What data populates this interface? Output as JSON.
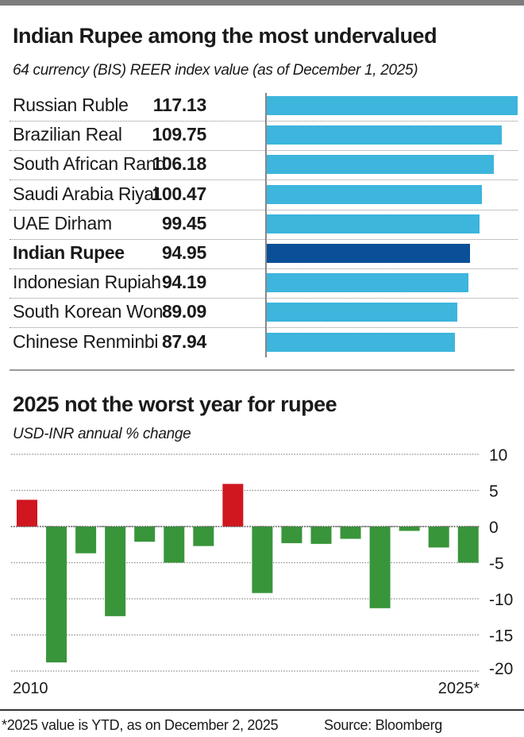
{
  "chart_data": [
    {
      "type": "bar",
      "orientation": "horizontal",
      "title": "Indian Rupee among the most undervalued",
      "subtitle": "64 currency (BIS) REER index value (as of December 1, 2025)",
      "categories": [
        "Russian Ruble",
        "Brazilian Real",
        "South African Rand",
        "Saudi Arabia Riyal",
        "UAE Dirham",
        "Indian Rupee",
        "Indonesian Rupiah",
        "South Korean Won",
        "Chinese Renminbi"
      ],
      "values": [
        117.13,
        109.75,
        106.18,
        100.47,
        99.45,
        94.95,
        94.19,
        89.09,
        87.94
      ],
      "value_labels": [
        "117.13",
        "109.75",
        "106.18",
        "100.47",
        "99.45",
        "94.95",
        "94.19",
        "89.09",
        "87.94"
      ],
      "highlight": "Indian Rupee",
      "colors": {
        "default": "#3db5dd",
        "highlight": "#0a4f98"
      },
      "xlabel": "",
      "ylabel": ""
    },
    {
      "type": "bar",
      "orientation": "vertical",
      "title": "2025 not the worst year for rupee",
      "subtitle": "USD-INR annual % change",
      "categories": [
        "2010",
        "2011",
        "2012",
        "2013",
        "2014",
        "2015",
        "2016",
        "2017",
        "2018",
        "2019",
        "2020",
        "2021",
        "2022",
        "2023",
        "2024",
        "2025*"
      ],
      "values": [
        3.7,
        -18.8,
        -3.7,
        -12.4,
        -2.1,
        -5.0,
        -2.7,
        5.9,
        -9.2,
        -2.3,
        -2.4,
        -1.7,
        -11.3,
        -0.6,
        -2.9,
        -5.0
      ],
      "x_tick_labels": [
        "2010",
        "2025*"
      ],
      "y_ticks": [
        10,
        5,
        0,
        -5,
        -10,
        -15,
        -20
      ],
      "y_tick_labels": [
        "10",
        "5",
        "0",
        "-5",
        "-10",
        "-15",
        "-20"
      ],
      "ylim": [
        -20,
        10
      ],
      "grid": true,
      "y_axis_side": "right",
      "colors": {
        "positive": "#d0161f",
        "negative": "#38953a"
      },
      "xlabel": "",
      "ylabel": ""
    }
  ],
  "footer": {
    "note": "*2025 value is YTD, as on December 2, 2025",
    "source": "Source: Bloomberg"
  }
}
